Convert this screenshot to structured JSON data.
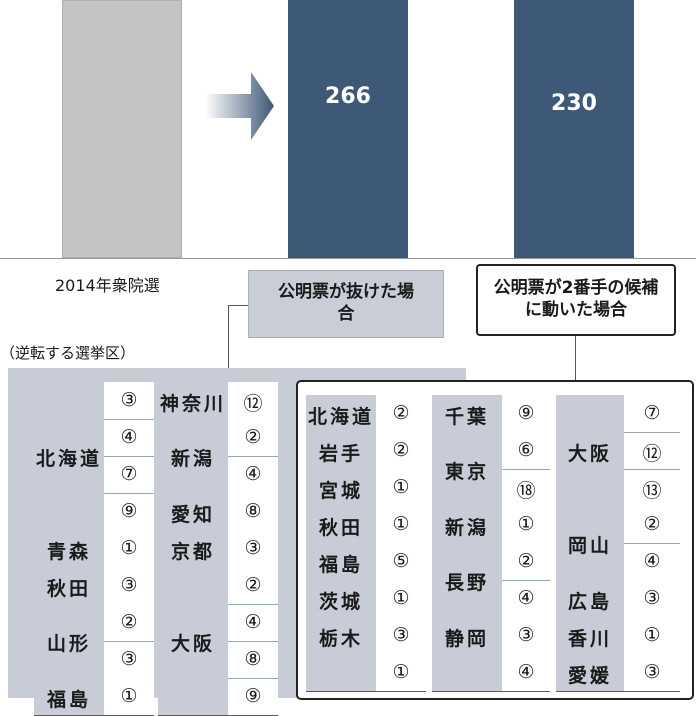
{
  "chart_data": {
    "type": "bar",
    "categories": [
      "2014年衆院選",
      "公明票が抜けた場合",
      "公明票が2番手の候補に動いた場合"
    ],
    "values": [
      null,
      266,
      230
    ],
    "value_labels": [
      "",
      "266",
      "230"
    ]
  },
  "captions": {
    "bar1": "2014年衆院選",
    "bar2": "公明票が抜けた場合",
    "bar3": "公明票が2番手の候補に動いた場合"
  },
  "label_bar2": "266",
  "label_bar3": "230",
  "list_title": "（逆転する選挙区）",
  "colors": {
    "bar_gray": "#c4c4c4",
    "bar_blue": "#3e5878",
    "panel": "#c7ccd6"
  },
  "left_table": {
    "col1": [
      {
        "pref": "北海道",
        "nums": [
          "③",
          "④",
          "⑦",
          "⑨"
        ]
      },
      {
        "pref": "青森",
        "nums": [
          "①"
        ]
      },
      {
        "pref": "秋田",
        "nums": [
          "③"
        ]
      },
      {
        "pref": "山形",
        "nums": [
          "②",
          "③"
        ]
      },
      {
        "pref": "福島",
        "nums": [
          "①"
        ]
      }
    ],
    "col2": [
      {
        "pref": "神奈川",
        "nums": [
          "⑫"
        ]
      },
      {
        "pref": "新潟",
        "nums": [
          "②",
          "④"
        ]
      },
      {
        "pref": "愛知",
        "nums": [
          "⑧"
        ]
      },
      {
        "pref": "京都",
        "nums": [
          "③"
        ]
      },
      {
        "pref": "大阪",
        "nums": [
          "②",
          "④",
          "⑧",
          "⑨"
        ]
      }
    ]
  },
  "right_table": {
    "col1": [
      {
        "pref": "北海道",
        "nums": [
          "②"
        ]
      },
      {
        "pref": "岩手",
        "nums": [
          "②"
        ]
      },
      {
        "pref": "宮城",
        "nums": [
          "①"
        ]
      },
      {
        "pref": "秋田",
        "nums": [
          "①"
        ]
      },
      {
        "pref": "福島",
        "nums": [
          "⑤"
        ]
      },
      {
        "pref": "茨城",
        "nums": [
          "①"
        ]
      },
      {
        "pref": "栃木",
        "nums": [
          "③"
        ]
      },
      {
        "pref": "",
        "nums": [
          "①"
        ]
      }
    ],
    "col2": [
      {
        "pref": "千葉",
        "nums": [
          "⑨"
        ]
      },
      {
        "pref": "東京",
        "nums": [
          "⑥",
          "⑱"
        ]
      },
      {
        "pref": "新潟",
        "nums": [
          "①"
        ]
      },
      {
        "pref": "長野",
        "nums": [
          "②",
          "④"
        ]
      },
      {
        "pref": "静岡",
        "nums": [
          "③"
        ]
      },
      {
        "pref": "",
        "nums": [
          "④"
        ]
      }
    ],
    "col3": [
      {
        "pref": "大阪",
        "nums": [
          "⑦",
          "⑫",
          "⑬"
        ]
      },
      {
        "pref": "岡山",
        "nums": [
          "②",
          "④"
        ]
      },
      {
        "pref": "広島",
        "nums": [
          "③"
        ]
      },
      {
        "pref": "香川",
        "nums": [
          "①"
        ]
      },
      {
        "pref": "愛媛",
        "nums": [
          "③"
        ]
      }
    ]
  }
}
